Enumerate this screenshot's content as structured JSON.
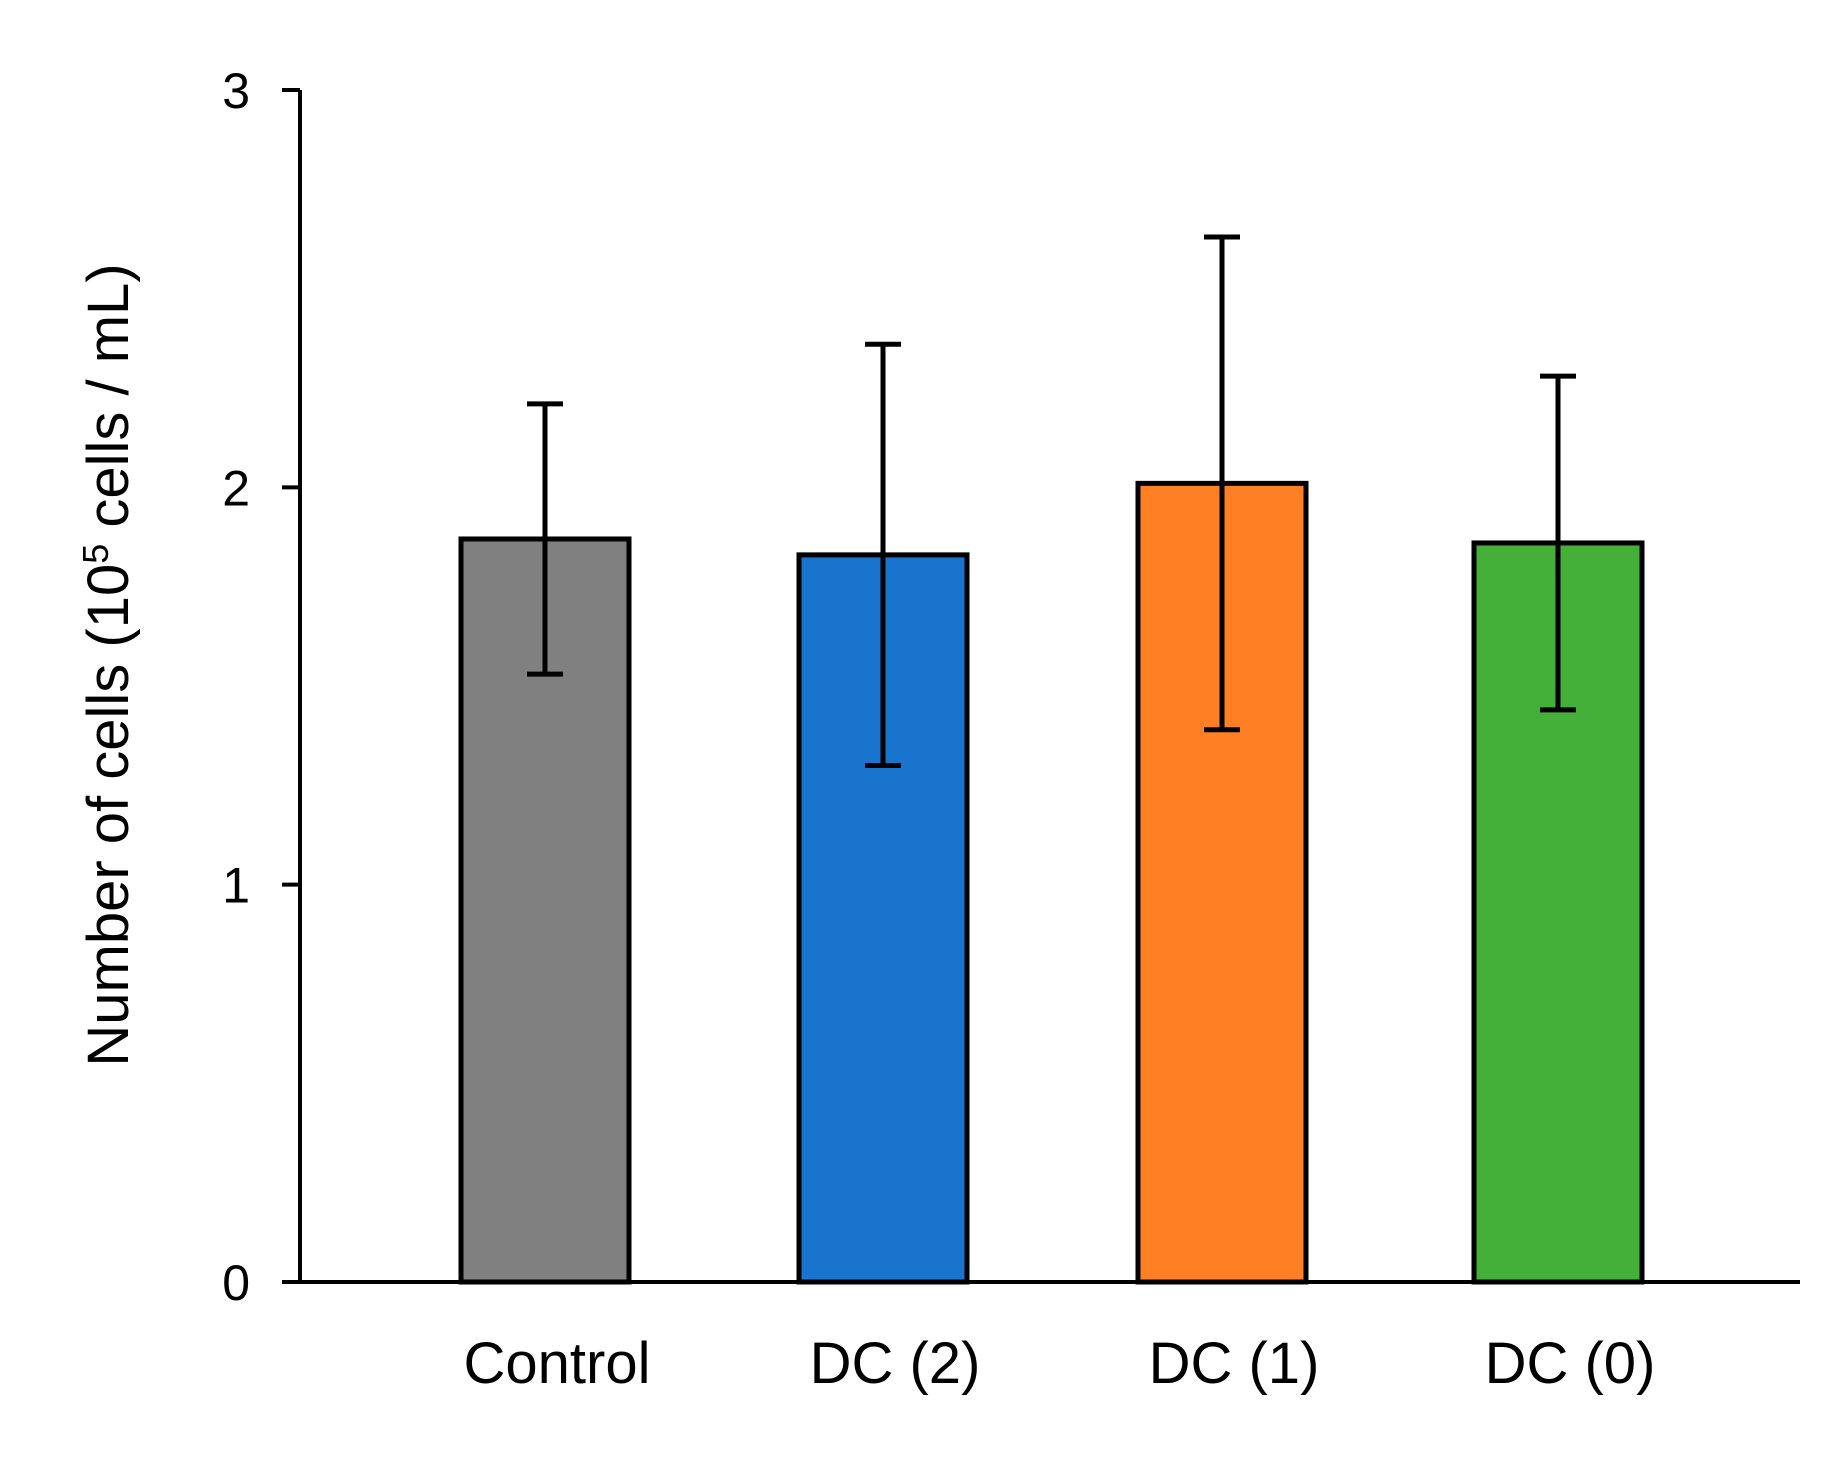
{
  "chart_data": {
    "type": "bar",
    "categories": [
      "Control",
      "DC (2)",
      "DC (1)",
      "DC (0)"
    ],
    "values": [
      1.87,
      1.83,
      2.01,
      1.86
    ],
    "errors": [
      0.34,
      0.53,
      0.62,
      0.42
    ],
    "colors": [
      "#808080",
      "#1874CD",
      "#FF7F24",
      "#45B039"
    ],
    "edge_color": "#000000",
    "ylabel": {
      "prefix": "Number of cells (10",
      "superscript": "5",
      "suffix": " cells / mL)"
    },
    "ylim": [
      0,
      3
    ],
    "yticks": [
      0,
      1,
      2,
      3
    ],
    "ytick_labels": [
      "0",
      "1",
      "2",
      "3"
    ],
    "grid": false,
    "legend": "none"
  }
}
